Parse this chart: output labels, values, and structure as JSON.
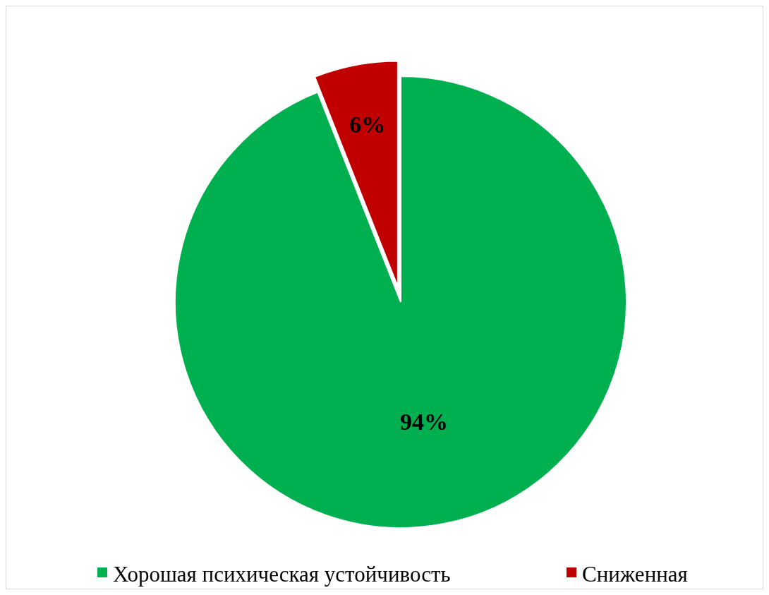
{
  "chart_data": {
    "type": "pie",
    "categories": [
      "Хорошая психическая устойчивость",
      "Сниженная"
    ],
    "values": [
      94,
      6
    ],
    "colors": [
      "#00b050",
      "#c00000"
    ],
    "value_labels": [
      "94%",
      "6%"
    ],
    "legend": "bottom"
  }
}
